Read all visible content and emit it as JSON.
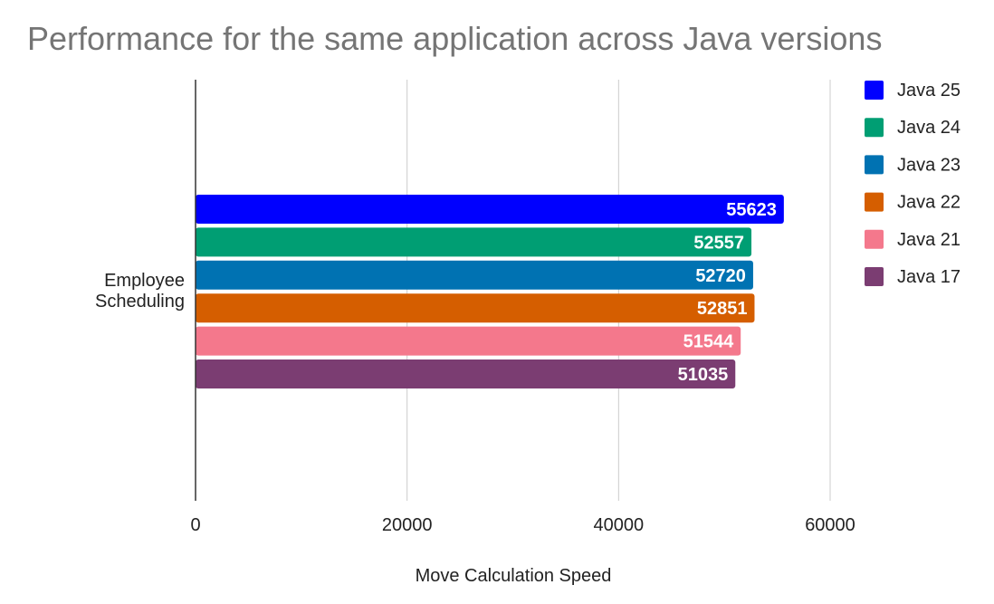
{
  "chart_data": {
    "type": "bar",
    "orientation": "horizontal",
    "title": "Performance for the same application across Java versions",
    "xlabel": "Move Calculation Speed",
    "ylabel": "",
    "categories": [
      "Employee Scheduling"
    ],
    "category_lines": [
      "Employee",
      "Scheduling"
    ],
    "xlim": [
      0,
      60000
    ],
    "x_ticks": [
      0,
      20000,
      40000,
      60000
    ],
    "x_tick_labels": [
      "0",
      "20000",
      "40000",
      "60000"
    ],
    "grid": true,
    "legend_position": "right",
    "series": [
      {
        "name": "Java 25",
        "values": [
          55623
        ],
        "label": "55623",
        "color": "#0000ff"
      },
      {
        "name": "Java 24",
        "values": [
          52557
        ],
        "label": "52557",
        "color": "#009e73"
      },
      {
        "name": "Java 23",
        "values": [
          52720
        ],
        "label": "52720",
        "color": "#0072b2"
      },
      {
        "name": "Java 22",
        "values": [
          52851
        ],
        "label": "52851",
        "color": "#d55e00"
      },
      {
        "name": "Java 21",
        "values": [
          51544
        ],
        "label": "51544",
        "color": "#f4788c"
      },
      {
        "name": "Java 17",
        "values": [
          51035
        ],
        "label": "51035",
        "color": "#7b3d72"
      }
    ]
  }
}
